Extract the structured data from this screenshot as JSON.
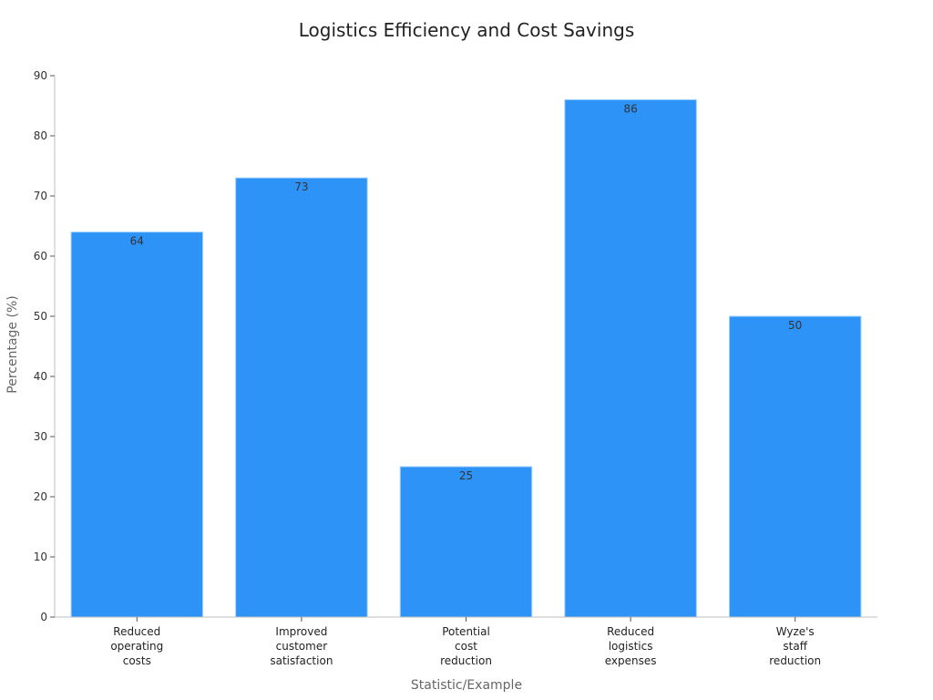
{
  "chart_data": {
    "type": "bar",
    "title": "Logistics Efficiency and Cost Savings",
    "xlabel": "Statistic/Example",
    "ylabel": "Percentage (%)",
    "categories": [
      "Reduced operating costs",
      "Improved customer satisfaction",
      "Potential cost reduction",
      "Reduced logistics expenses",
      "Wyze's staff reduction"
    ],
    "category_lines": [
      [
        "Reduced",
        "operating",
        "costs"
      ],
      [
        "Improved",
        "customer",
        "satisfaction"
      ],
      [
        "Potential",
        "cost",
        "reduction"
      ],
      [
        "Reduced",
        "logistics",
        "expenses"
      ],
      [
        "Wyze's",
        "staff",
        "reduction"
      ]
    ],
    "values": [
      64,
      73,
      25,
      86,
      50
    ],
    "ylim": [
      0,
      90
    ],
    "yticks": [
      0,
      10,
      20,
      30,
      40,
      50,
      60,
      70,
      80,
      90
    ],
    "grid": false,
    "legend": "none",
    "bar_color": "#2e93f7"
  }
}
